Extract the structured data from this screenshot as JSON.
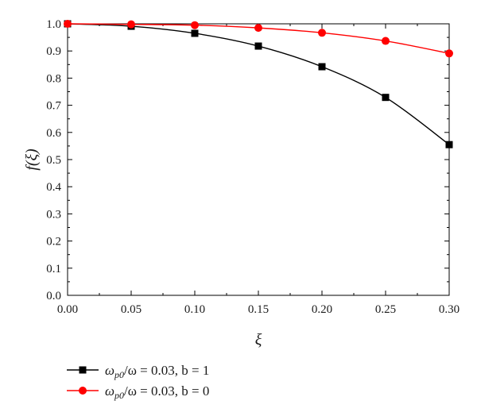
{
  "chart_data": {
    "type": "line",
    "xlabel": "ξ",
    "ylabel": "f(ξ)",
    "xlim": [
      0.0,
      0.3
    ],
    "ylim": [
      0.0,
      1.0
    ],
    "x_ticks": [
      "0.00",
      "0.05",
      "0.10",
      "0.15",
      "0.20",
      "0.25",
      "0.30"
    ],
    "y_ticks": [
      "0.0",
      "0.1",
      "0.2",
      "0.3",
      "0.4",
      "0.5",
      "0.6",
      "0.7",
      "0.8",
      "0.9",
      "1.0"
    ],
    "grid": false,
    "legend_placement": "bottom",
    "x": [
      0.0,
      0.05,
      0.1,
      0.15,
      0.2,
      0.25,
      0.3
    ],
    "series": [
      {
        "name": "ω_p0/ω = 0.03, b = 1",
        "name_main": "ω",
        "name_sub": "p0",
        "name_rest": "/ω = 0.03, b = 1",
        "marker": "square",
        "color": "#000000",
        "values": [
          1.0,
          0.991,
          0.965,
          0.918,
          0.842,
          0.729,
          0.555
        ]
      },
      {
        "name": "ω_p0/ω = 0.03, b = 0",
        "name_main": "ω",
        "name_sub": "p0",
        "name_rest": "/ω = 0.03, b = 0",
        "marker": "circle",
        "color": "#ff0000",
        "values": [
          1.0,
          0.998,
          0.995,
          0.985,
          0.967,
          0.937,
          0.891
        ]
      }
    ]
  }
}
